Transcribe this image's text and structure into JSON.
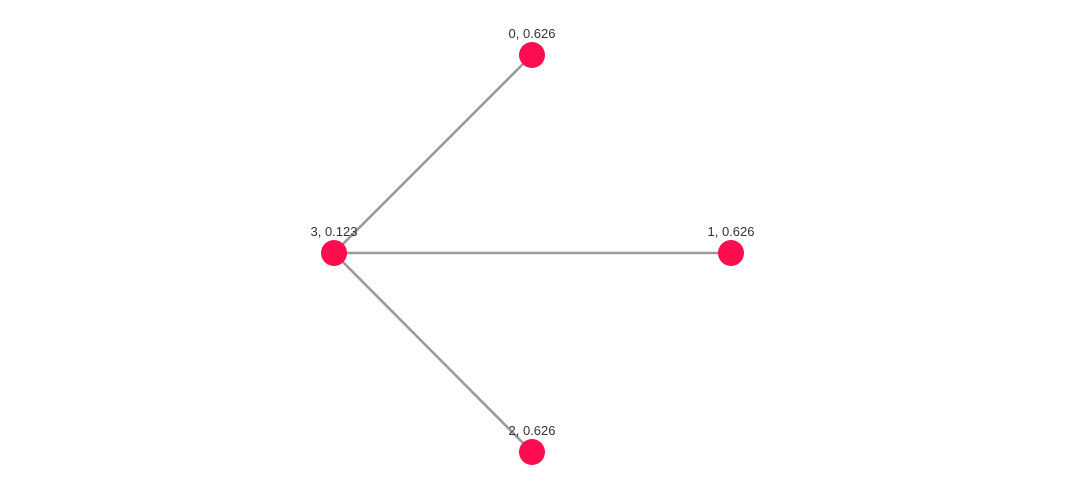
{
  "graph": {
    "node_color": "#ff0d4f",
    "edge_color": "#9b9b9b",
    "label_color": "#333333",
    "layout": "radial, centre node on the left, outer nodes on an arc to the right",
    "nodes": [
      {
        "id": "0",
        "label": "0, 0.626"
      },
      {
        "id": "1",
        "label": "1, 0.626"
      },
      {
        "id": "2",
        "label": "2, 0.626"
      },
      {
        "id": "3",
        "label": "3, 0.123"
      }
    ],
    "edges": [
      {
        "source": "3",
        "target": "0"
      },
      {
        "source": "3",
        "target": "1"
      },
      {
        "source": "3",
        "target": "2"
      }
    ]
  }
}
